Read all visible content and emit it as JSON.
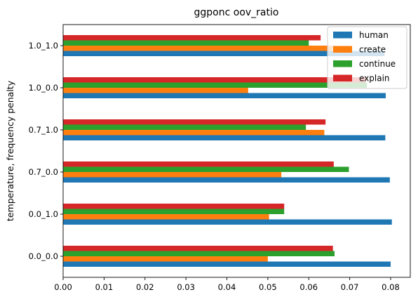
{
  "chart_data": {
    "type": "bar",
    "orientation": "horizontal",
    "title": "ggponc oov_ratio",
    "xlabel": "",
    "ylabel": "temperature, frequency penalty",
    "categories": [
      "0.0_0.0",
      "0.0_1.0",
      "0.7_0.0",
      "0.7_1.0",
      "1.0_0.0",
      "1.0_1.0"
    ],
    "series": [
      {
        "name": "human",
        "color": "#1f77b4",
        "values": [
          0.08,
          0.0803,
          0.0798,
          0.0787,
          0.0788,
          0.0785
        ]
      },
      {
        "name": "create",
        "color": "#ff7f0e",
        "values": [
          0.05,
          0.0503,
          0.0533,
          0.0638,
          0.0452,
          0.0659
        ]
      },
      {
        "name": "continue",
        "color": "#2ca02c",
        "values": [
          0.0663,
          0.054,
          0.0698,
          0.0593,
          0.0742,
          0.06
        ]
      },
      {
        "name": "explain",
        "color": "#d62728",
        "values": [
          0.0659,
          0.054,
          0.0661,
          0.0641,
          0.074,
          0.0629
        ]
      }
    ],
    "xlim": [
      0,
      0.0848
    ],
    "xticks": [
      "0.00",
      "0.01",
      "0.02",
      "0.03",
      "0.04",
      "0.05",
      "0.06",
      "0.07",
      "0.08"
    ],
    "grid": false,
    "legend": "top-right"
  }
}
